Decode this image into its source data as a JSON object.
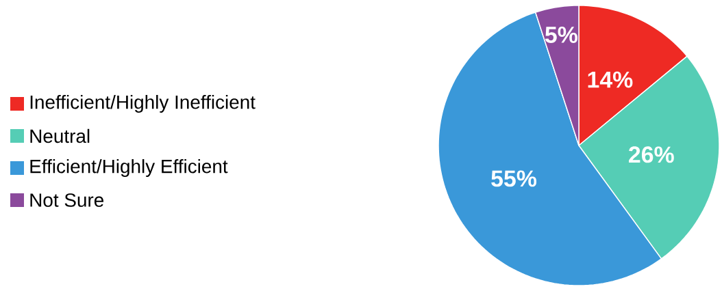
{
  "chart_data": {
    "type": "pie",
    "categories": [
      "Inefficient/Highly Inefficient",
      "Neutral",
      "Efficient/Highly Efficient",
      "Not Sure"
    ],
    "values": [
      14,
      26,
      55,
      5
    ],
    "value_labels": [
      "14%",
      "26%",
      "55%",
      "5%"
    ],
    "colors": [
      "#ee2a24",
      "#55cdb5",
      "#3a98d9",
      "#8b4a9c"
    ],
    "legend": "left"
  }
}
